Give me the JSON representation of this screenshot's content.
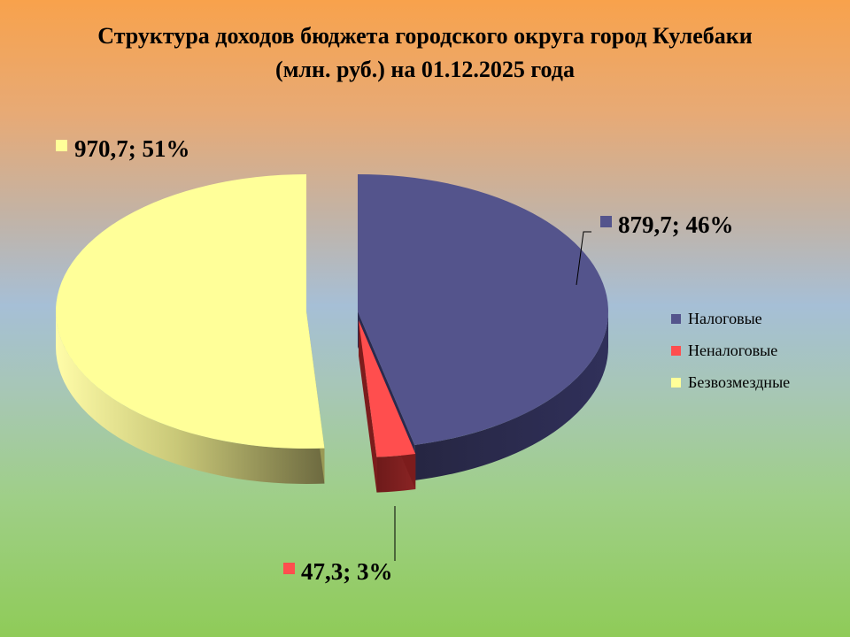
{
  "slide": {
    "title_line1": "Структура доходов бюджета городского округа город Кулебаки",
    "title_line2": "(млн. руб.) на 01.12.2025 года"
  },
  "chart_data": {
    "type": "pie",
    "title": "Структура доходов бюджета городского округа город Кулебаки (млн. руб.) на 01.12.2025 года",
    "style": "3d-exploded",
    "legend_position": "right",
    "series": [
      {
        "name": "Налоговые",
        "value": 879.7,
        "percent": 46,
        "label": "879,7; 46%",
        "color": "#54548c",
        "side_color": "#2a2a4e"
      },
      {
        "name": "Неналоговые",
        "value": 47.3,
        "percent": 3,
        "label": "47,3; 3%",
        "color": "#ff4e4e",
        "side_color": "#7c1c1c"
      },
      {
        "name": "Безвозмездные",
        "value": 970.7,
        "percent": 51,
        "label": "970,7; 51%",
        "color": "#ffff99",
        "side_color": "#9a9a56"
      }
    ]
  }
}
